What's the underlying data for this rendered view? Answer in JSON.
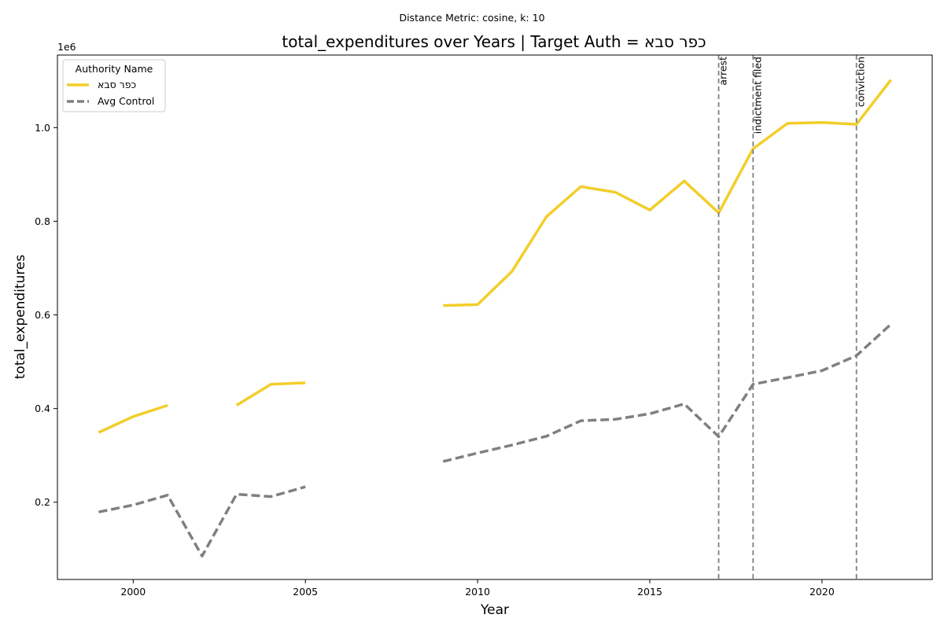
{
  "suptitle": "Distance Metric: cosine, k: 10",
  "chart_data": {
    "type": "line",
    "title": "total_expenditures over Years | Target Auth = כפר סבא",
    "xlabel": "Year",
    "ylabel": "total_expenditures",
    "y_offset_label": "1e6",
    "xlim": [
      1997.8,
      2023.2
    ],
    "ylim": [
      35000,
      1155000
    ],
    "x_ticks": [
      2000,
      2005,
      2010,
      2015,
      2020
    ],
    "x_tick_labels": [
      "2000",
      "2005",
      "2010",
      "2015",
      "2020"
    ],
    "y_ticks": [
      200000,
      400000,
      600000,
      800000,
      1000000
    ],
    "y_tick_labels": [
      "0.2",
      "0.4",
      "0.6",
      "0.8",
      "1.0"
    ],
    "grid": false,
    "legend": {
      "title": "Authority Name",
      "placement": "top-left"
    },
    "x": [
      1999,
      2000,
      2001,
      2002,
      2003,
      2004,
      2005,
      2006,
      2007,
      2008,
      2009,
      2010,
      2011,
      2012,
      2013,
      2014,
      2015,
      2016,
      2017,
      2018,
      2019,
      2020,
      2021,
      2022
    ],
    "series": [
      {
        "name": "כפר סבא",
        "color": "#f2ce2a",
        "style": "solid",
        "values": [
          349000,
          383000,
          407000,
          null,
          407000,
          452000,
          455000,
          null,
          null,
          null,
          620000,
          622000,
          693000,
          810000,
          874000,
          862000,
          824000,
          886000,
          818000,
          955000,
          1009000,
          1011000,
          1007000,
          1102000
        ]
      },
      {
        "name": "Avg Control",
        "color": "#808080",
        "style": "dashed",
        "values": [
          179000,
          194000,
          215000,
          85000,
          217000,
          212000,
          233000,
          null,
          null,
          null,
          287000,
          305000,
          322000,
          341000,
          374000,
          377000,
          389000,
          410000,
          340000,
          452000,
          466000,
          481000,
          513000,
          580000
        ]
      }
    ],
    "events": [
      {
        "x": 2017,
        "label": "arrest"
      },
      {
        "x": 2018,
        "label": "indictment filed"
      },
      {
        "x": 2021,
        "label": "conviction"
      }
    ]
  }
}
